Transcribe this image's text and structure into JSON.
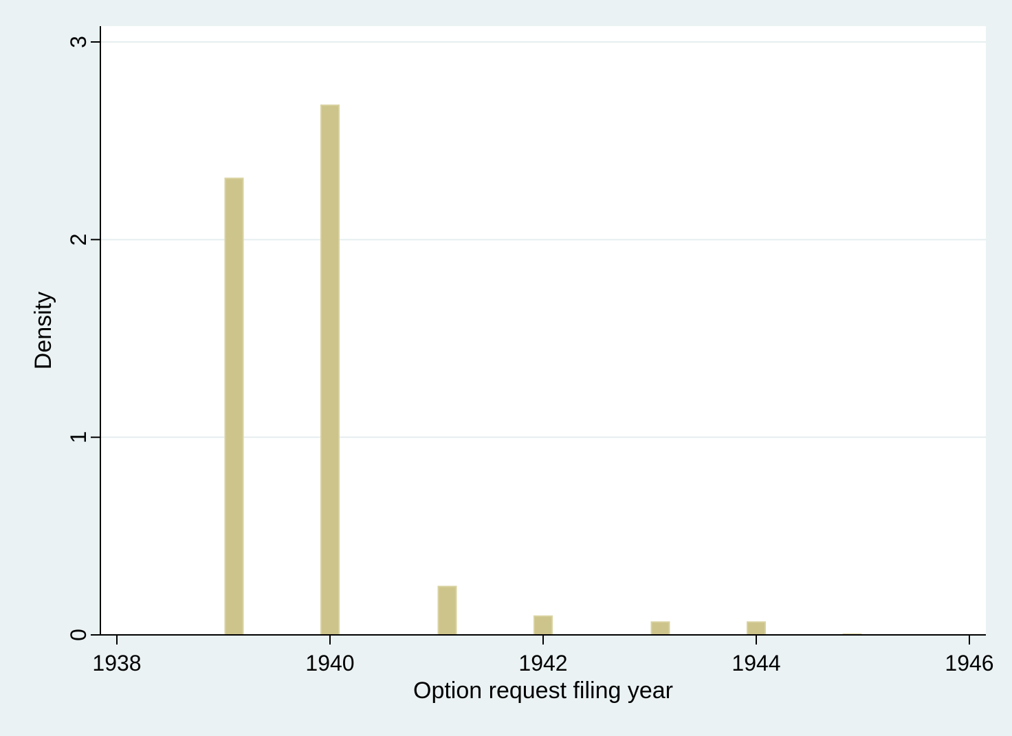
{
  "chart_data": {
    "type": "bar",
    "title": "",
    "xlabel": "Option request filing year",
    "ylabel": "Density",
    "xlim": [
      1938,
      1946
    ],
    "ylim": [
      0,
      3
    ],
    "xticks": [
      1938,
      1940,
      1942,
      1944,
      1946
    ],
    "yticks": [
      0,
      1,
      2,
      3
    ],
    "grid": "horizontal",
    "bars": [
      {
        "x": 1939.1,
        "value": 2.31
      },
      {
        "x": 1940.0,
        "value": 2.68
      },
      {
        "x": 1941.1,
        "value": 0.245
      },
      {
        "x": 1942.0,
        "value": 0.095
      },
      {
        "x": 1943.1,
        "value": 0.065
      },
      {
        "x": 1944.0,
        "value": 0.065
      },
      {
        "x": 1944.9,
        "value": 0.004
      }
    ],
    "colors": {
      "bar_fill": "#cdc48b",
      "bar_stroke": "#d9d2a0",
      "plot_background": "#ffffff",
      "page_background": "#eaf2f3",
      "gridline": "#e6eeef"
    }
  }
}
